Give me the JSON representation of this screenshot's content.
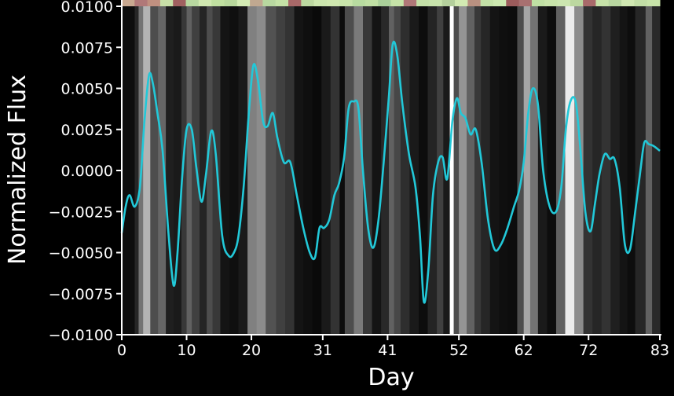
{
  "chart_data": {
    "type": "line",
    "xlabel": "Day",
    "ylabel": "Normalized Flux",
    "xlim": [
      0,
      83
    ],
    "ylim": [
      -0.01,
      0.01
    ],
    "x_ticks": [
      0,
      10,
      20,
      31,
      41,
      52,
      62,
      72,
      83
    ],
    "x_tick_labels": [
      "0",
      "10",
      "20",
      "31",
      "41",
      "52",
      "62",
      "72",
      "83"
    ],
    "y_ticks": [
      -0.01,
      -0.0075,
      -0.005,
      -0.0025,
      0.0,
      0.0025,
      0.005,
      0.0075,
      0.01
    ],
    "y_tick_labels": [
      "−0.0100",
      "−0.0075",
      "−0.0050",
      "−0.0025",
      "0.0000",
      "0.0025",
      "0.0050",
      "0.0075",
      "0.0100"
    ],
    "grid": false,
    "background": "#000000",
    "axis_color": "#ffffff",
    "series": [
      {
        "color": "#22c8d8",
        "x": [
          0,
          0.6,
          1.2,
          2.0,
          2.8,
          3.5,
          4.2,
          4.8,
          5.5,
          6.3,
          7.2,
          8.0,
          8.6,
          9.3,
          10.0,
          10.8,
          11.5,
          12.3,
          13.0,
          13.8,
          14.5,
          15.5,
          16.5,
          17.3,
          18.0,
          18.8,
          19.6,
          20.3,
          21.0,
          21.8,
          22.5,
          23.3,
          24.0,
          25.0,
          26.0,
          27.0,
          28.0,
          29.0,
          29.8,
          30.5,
          31.2,
          32.0,
          32.8,
          33.5,
          34.3,
          35.0,
          35.8,
          36.5,
          37.2,
          38.0,
          38.8,
          39.6,
          40.4,
          41.2,
          41.8,
          42.5,
          43.3,
          44.3,
          45.3,
          46.0,
          46.6,
          47.3,
          48.0,
          48.8,
          49.5,
          50.2,
          51.0,
          51.7,
          52.3,
          53.0,
          53.8,
          54.6,
          55.5,
          56.5,
          57.5,
          58.5,
          59.5,
          60.5,
          61.3,
          62.0,
          62.7,
          63.4,
          64.2,
          65.0,
          66.0,
          67.0,
          67.8,
          68.5,
          69.2,
          70.0,
          70.7,
          71.5,
          72.3,
          73.0,
          73.7,
          74.5,
          75.3,
          76.0,
          76.8,
          77.6,
          78.4,
          79.2,
          80.0,
          80.6,
          81.3,
          82.0,
          83.0
        ],
        "y": [
          -0.0038,
          -0.0022,
          -0.0015,
          -0.0022,
          -0.001,
          0.003,
          0.0058,
          0.0053,
          0.0035,
          0.0012,
          -0.0038,
          -0.007,
          -0.005,
          -0.0005,
          0.0025,
          0.0025,
          0.0002,
          -0.0019,
          -0.0002,
          0.0024,
          0.001,
          -0.004,
          -0.0052,
          -0.005,
          -0.004,
          -0.001,
          0.0035,
          0.0064,
          0.0055,
          0.003,
          0.0027,
          0.0035,
          0.002,
          0.0005,
          0.0005,
          -0.0015,
          -0.0035,
          -0.005,
          -0.0053,
          -0.0035,
          -0.0035,
          -0.003,
          -0.0015,
          -0.0008,
          0.0008,
          0.0038,
          0.0042,
          0.0038,
          0.0,
          -0.0035,
          -0.0047,
          -0.003,
          0.0005,
          0.0045,
          0.0077,
          0.007,
          0.004,
          0.001,
          -0.001,
          -0.004,
          -0.008,
          -0.006,
          -0.0015,
          0.0005,
          0.0008,
          -0.0005,
          0.003,
          0.0044,
          0.0035,
          0.0032,
          0.0022,
          0.0025,
          0.0005,
          -0.003,
          -0.0048,
          -0.0045,
          -0.0035,
          -0.0022,
          -0.0012,
          0.0005,
          0.0035,
          0.005,
          0.004,
          0.0,
          -0.0022,
          -0.0025,
          -0.001,
          0.0025,
          0.0042,
          0.0042,
          0.0015,
          -0.0025,
          -0.0037,
          -0.002,
          -0.0002,
          0.001,
          0.0007,
          0.0007,
          -0.001,
          -0.0045,
          -0.0048,
          -0.0025,
          0.0,
          0.0017,
          0.0016,
          0.0015,
          0.0012
        ]
      }
    ],
    "background_bands": {
      "colormap": "grayscale",
      "x_edges": [
        0,
        2,
        2.6,
        3.3,
        4.4,
        5.6,
        6.8,
        8.0,
        9.2,
        10.0,
        10.8,
        12.0,
        13.1,
        14.0,
        15.2,
        16.6,
        18.0,
        19.4,
        20.8,
        22.2,
        23.8,
        25.2,
        26.6,
        28.0,
        29.4,
        30.8,
        32.2,
        33.6,
        34.4,
        35.8,
        37.2,
        38.6,
        40.0,
        41.2,
        42.0,
        43.0,
        44.4,
        45.8,
        47.2,
        48.6,
        49.6,
        50.6,
        51.2,
        52.0,
        53.2,
        54.4,
        55.4,
        56.8,
        58.2,
        59.6,
        61.0,
        62.0,
        63.0,
        64.2,
        65.6,
        67.0,
        68.4,
        69.8,
        71.2,
        72.6,
        74.0,
        75.4,
        76.8,
        78.0,
        79.2,
        80.8,
        81.8,
        83
      ],
      "levels": [
        0.05,
        0.15,
        0.45,
        0.7,
        0.3,
        0.4,
        0.12,
        0.1,
        0.22,
        0.38,
        0.25,
        0.14,
        0.3,
        0.22,
        0.08,
        0.06,
        0.1,
        0.5,
        0.55,
        0.32,
        0.25,
        0.2,
        0.08,
        0.06,
        0.04,
        0.1,
        0.2,
        0.05,
        0.3,
        0.48,
        0.22,
        0.08,
        0.16,
        0.38,
        0.28,
        0.18,
        0.1,
        0.05,
        0.14,
        0.25,
        0.1,
        1.0,
        0.3,
        0.58,
        0.38,
        0.22,
        0.15,
        0.08,
        0.06,
        0.05,
        0.3,
        0.65,
        0.45,
        0.1,
        0.05,
        0.38,
        0.92,
        0.55,
        0.2,
        0.15,
        0.2,
        0.12,
        0.08,
        0.05,
        0.15,
        0.38,
        0.16
      ]
    },
    "top_strip": {
      "colors": [
        "#c8a890",
        "#b07878",
        "#c09080",
        "#c8e0a8",
        "#a06060",
        "#b8d8a0",
        "#d0e8b0",
        "#c0e0a0",
        "#b8d89c",
        "#d4ecb4",
        "#c0a890",
        "#b8d8a0",
        "#c4e2a6",
        "#a86868",
        "#bcd8a0",
        "#cce6ae",
        "#d0e8b0",
        "#c8e4aa",
        "#b8dca0",
        "#c0e0a4",
        "#aad09a",
        "#c6e4a8",
        "#b07878",
        "#c4e0a8",
        "#c8e4ac",
        "#b4d09c",
        "#d2eab2",
        "#b89080",
        "#c4e2a8",
        "#cce8b0",
        "#9c5c5c",
        "#a87070",
        "#c0e0a4",
        "#c8e4aa",
        "#cce6b0",
        "#bcd8a0",
        "#a86a6a",
        "#c6e2a8",
        "#b8d6a0",
        "#d0e8b2",
        "#c2dea6",
        "#c8e4aa"
      ]
    }
  }
}
